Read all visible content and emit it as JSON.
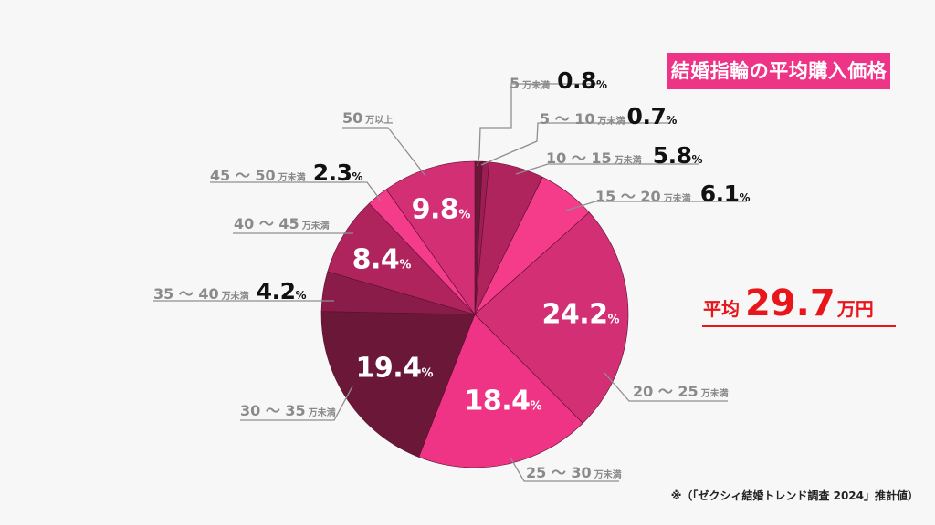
{
  "title": "結婚指輪の平均購入価格",
  "average": {
    "prefix": "平均",
    "value": "29.7",
    "suffix": "万円"
  },
  "source": "※（「ゼクシィ結婚トレンド調査 2024」推計値）",
  "pct_symbol": "%",
  "unit_less_than": "万未満",
  "unit_or_more": "万以上",
  "chart_data": {
    "type": "pie",
    "title": "結婚指輪の平均購入価格",
    "unit": "%",
    "start_angle": "12 o'clock, clockwise",
    "categories": [
      "5万未満",
      "5～10万未満",
      "10～15万未満",
      "15～20万未満",
      "20～25万未満",
      "25～30万未満",
      "30～35万未満",
      "35～40万未満",
      "40～45万未満",
      "45～50万未満",
      "50万以上"
    ],
    "values": [
      0.8,
      0.7,
      5.8,
      6.1,
      24.2,
      18.4,
      19.4,
      4.2,
      8.4,
      2.3,
      9.8
    ],
    "colors": [
      "#6b1838",
      "#9c1e54",
      "#b0245e",
      "#f53c8a",
      "#d22f74",
      "#f03485",
      "#6b1838",
      "#8a1c4a",
      "#b0245e",
      "#f53c8a",
      "#d22f74"
    ],
    "annotations": [
      "平均 29.7万円"
    ]
  },
  "labels": [
    {
      "range": "5",
      "unit": "万未満",
      "pct": "0.8"
    },
    {
      "range": "5 ～ 10",
      "unit": "万未満",
      "pct": "0.7"
    },
    {
      "range": "10 ～ 15",
      "unit": "万未満",
      "pct": "5.8"
    },
    {
      "range": "15 ～ 20",
      "unit": "万未満",
      "pct": "6.1"
    },
    {
      "range": "20 ～ 25",
      "unit": "万未満",
      "pct": "24.2"
    },
    {
      "range": "25 ～ 30",
      "unit": "万未満",
      "pct": "18.4"
    },
    {
      "range": "30 ～ 35",
      "unit": "万未満",
      "pct": "19.4"
    },
    {
      "range": "35 ～ 40",
      "unit": "万未満",
      "pct": "4.2"
    },
    {
      "range": "40 ～ 45",
      "unit": "万未満",
      "pct": "8.4"
    },
    {
      "range": "45 ～ 50",
      "unit": "万未満",
      "pct": "2.3"
    },
    {
      "range": "50",
      "unit": "万以上",
      "pct": "9.8"
    }
  ]
}
